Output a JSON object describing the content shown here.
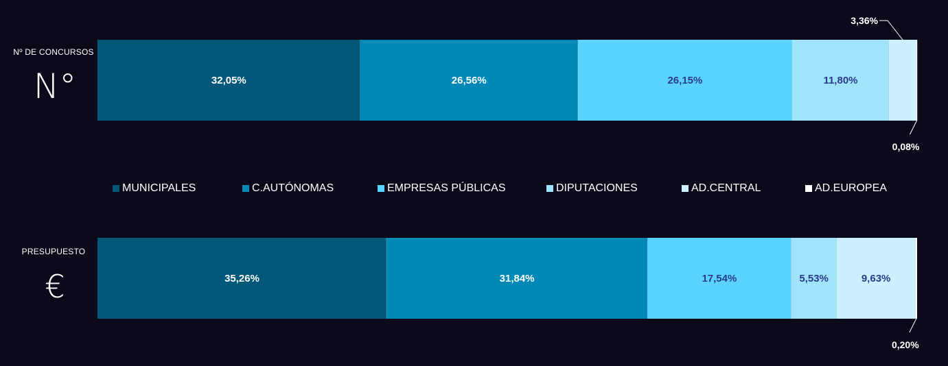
{
  "colors": {
    "background": "#0b0a1a",
    "municipales": "#03587a",
    "autonomas": "#0088b6",
    "empresas": "#5ad4ff",
    "diputaciones": "#9fe4fb",
    "central": "#ccf0fd",
    "europea": "#ffffff",
    "dark_label": "#2a3a8c",
    "light_label": "#ffffff"
  },
  "rows": [
    {
      "label": "Nº DE CONCURSOS",
      "symbol": "N°"
    },
    {
      "label": "PRESUPUESTO",
      "symbol": "€"
    }
  ],
  "legend": [
    {
      "label": "MUNICIPALES",
      "color": "#03587a"
    },
    {
      "label": "C.AUTÓNOMAS",
      "color": "#0088b6"
    },
    {
      "label": "EMPRESAS PÚBLICAS",
      "color": "#5ad4ff"
    },
    {
      "label": "DIPUTACIONES",
      "color": "#9fe4fb"
    },
    {
      "label": "AD.CENTRAL",
      "color": "#ccf0fd"
    },
    {
      "label": "AD.EUROPEA",
      "color": "#ffffff"
    }
  ],
  "chart_data": [
    {
      "type": "bar",
      "stacked": true,
      "orientation": "horizontal",
      "categories": [
        "Nº DE CONCURSOS"
      ],
      "series": [
        {
          "name": "MUNICIPALES",
          "values": [
            32.05
          ],
          "label": "32,05%"
        },
        {
          "name": "C.AUTÓNOMAS",
          "values": [
            26.56
          ],
          "label": "26,56%"
        },
        {
          "name": "EMPRESAS PÚBLICAS",
          "values": [
            26.15
          ],
          "label": "26,15%"
        },
        {
          "name": "DIPUTACIONES",
          "values": [
            11.8
          ],
          "label": "11,80%"
        },
        {
          "name": "AD.CENTRAL",
          "values": [
            3.36
          ],
          "label": "3,36%"
        },
        {
          "name": "AD.EUROPEA",
          "values": [
            0.08
          ],
          "label": "0,08%"
        }
      ],
      "xlim": [
        0,
        100
      ]
    },
    {
      "type": "bar",
      "stacked": true,
      "orientation": "horizontal",
      "categories": [
        "PRESUPUESTO"
      ],
      "series": [
        {
          "name": "MUNICIPALES",
          "values": [
            35.26
          ],
          "label": "35,26%"
        },
        {
          "name": "C.AUTÓNOMAS",
          "values": [
            31.84
          ],
          "label": "31,84%"
        },
        {
          "name": "EMPRESAS PÚBLICAS",
          "values": [
            17.54
          ],
          "label": "17,54%"
        },
        {
          "name": "DIPUTACIONES",
          "values": [
            5.53
          ],
          "label": "5,53%"
        },
        {
          "name": "AD.CENTRAL",
          "values": [
            9.63
          ],
          "label": "9,63%"
        },
        {
          "name": "AD.EUROPEA",
          "values": [
            0.2
          ],
          "label": "0,20%"
        }
      ],
      "xlim": [
        0,
        100
      ]
    }
  ]
}
